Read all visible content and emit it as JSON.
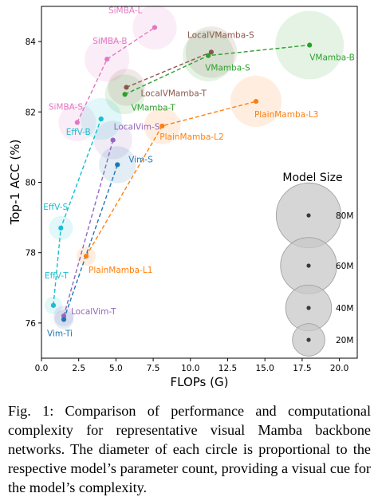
{
  "caption": "Fig. 1: Comparison of performance and computational complexity for representative visual Mamba backbone networks. The diameter of each circle is proportional to the respective model’s parameter count, providing a visual cue for the model’s complexity.",
  "chart_data": {
    "type": "scatter",
    "xlabel": "FLOPs (G)",
    "ylabel": "Top-1 ACC (%)",
    "xlim": [
      0,
      21.2
    ],
    "ylim": [
      75.0,
      85.0
    ],
    "xticks": [
      0.0,
      2.5,
      5.0,
      7.5,
      10.0,
      12.5,
      15.0,
      17.5,
      20.0
    ],
    "xtick_labels": [
      "0.0",
      "2.5",
      "5.0",
      "7.5",
      "10.0",
      "12.5",
      "15.0",
      "17.5",
      "20.0"
    ],
    "yticks": [
      76,
      78,
      80,
      82,
      84
    ],
    "ytick_labels": [
      "76",
      "78",
      "80",
      "82",
      "84"
    ],
    "grid": false,
    "series": [
      {
        "color": "#e377c2",
        "points": [
          {
            "label": "SiMBA-S",
            "x": 2.4,
            "y": 81.7,
            "params": 27
          },
          {
            "label": "SiMBA-B",
            "x": 4.4,
            "y": 83.5,
            "params": 38
          },
          {
            "label": "SiMBA-L",
            "x": 7.6,
            "y": 84.4,
            "params": 37
          }
        ]
      },
      {
        "color": "#8c564b",
        "points": [
          {
            "label": "LocalVMamba-T",
            "x": 5.7,
            "y": 82.7,
            "params": 26
          },
          {
            "label": "LocalVMamba-S",
            "x": 11.4,
            "y": 83.7,
            "params": 50
          }
        ]
      },
      {
        "color": "#2ca02c",
        "points": [
          {
            "label": "VMamba-T",
            "x": 5.6,
            "y": 82.5,
            "params": 30
          },
          {
            "label": "VMamba-S",
            "x": 11.2,
            "y": 83.6,
            "params": 50
          },
          {
            "label": "VMamba-B",
            "x": 18.0,
            "y": 83.9,
            "params": 89
          }
        ]
      },
      {
        "color": "#ff7f0e",
        "points": [
          {
            "label": "PlainMamba-L1",
            "x": 3.0,
            "y": 77.9,
            "params": 7
          },
          {
            "label": "PlainMamba-L2",
            "x": 8.1,
            "y": 81.6,
            "params": 25
          },
          {
            "label": "PlainMamba-L3",
            "x": 14.4,
            "y": 82.3,
            "params": 50
          }
        ]
      },
      {
        "color": "#9467bd",
        "points": [
          {
            "label": "LocalVim-T",
            "x": 1.5,
            "y": 76.2,
            "params": 8
          },
          {
            "label": "LocalVim-S",
            "x": 4.8,
            "y": 81.2,
            "params": 28
          }
        ]
      },
      {
        "color": "#1f77b4",
        "points": [
          {
            "label": "Vim-Ti",
            "x": 1.5,
            "y": 76.1,
            "params": 7
          },
          {
            "label": "Vim-S",
            "x": 5.1,
            "y": 80.5,
            "params": 26
          }
        ]
      },
      {
        "color": "#17becf",
        "points": [
          {
            "label": "EffV-T",
            "x": 0.8,
            "y": 76.5,
            "params": 6
          },
          {
            "label": "EffV-S",
            "x": 1.3,
            "y": 78.7,
            "params": 11
          },
          {
            "label": "EffV-B",
            "x": 4.0,
            "y": 81.8,
            "params": 33
          }
        ]
      }
    ],
    "legend": {
      "title": "Model Size",
      "position": "right",
      "entries": [
        {
          "label": "80M",
          "params": 80
        },
        {
          "label": "60M",
          "params": 60
        },
        {
          "label": "40M",
          "params": 40
        },
        {
          "label": "20M",
          "params": 20
        }
      ]
    }
  }
}
